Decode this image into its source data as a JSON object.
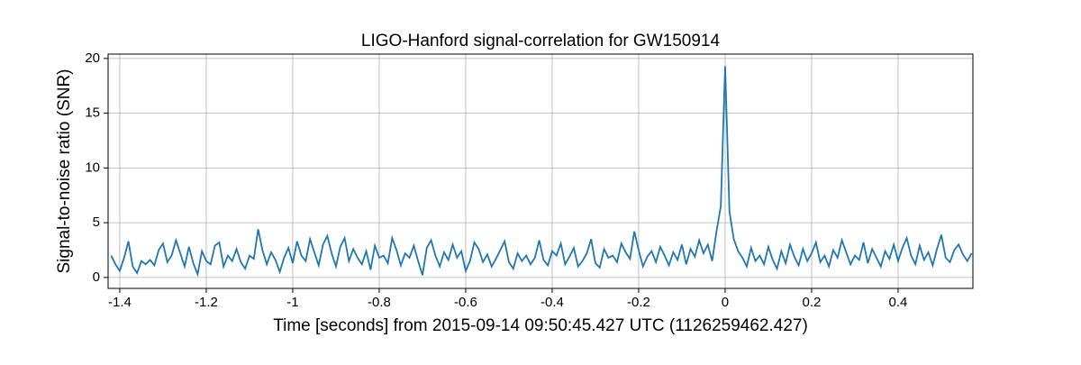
{
  "chart_data": {
    "type": "line",
    "title": "LIGO-Hanford signal-correlation for GW150914",
    "xlabel": "Time [seconds] from 2015-09-14 09:50:45.427 UTC (1126259462.427)",
    "ylabel": "Signal-to-noise ratio (SNR)",
    "xlim": [
      -1.427,
      0.573
    ],
    "ylim": [
      -1,
      20.4
    ],
    "xticks": [
      -1.4,
      -1.2,
      -1,
      -0.8,
      -0.6,
      -0.4,
      -0.2,
      0,
      0.2,
      0.4
    ],
    "yticks": [
      0,
      5,
      10,
      15,
      20
    ],
    "grid": true,
    "x": [
      -1.42,
      -1.41,
      -1.4,
      -1.39,
      -1.38,
      -1.37,
      -1.36,
      -1.35,
      -1.34,
      -1.33,
      -1.32,
      -1.31,
      -1.3,
      -1.29,
      -1.28,
      -1.27,
      -1.26,
      -1.25,
      -1.24,
      -1.23,
      -1.22,
      -1.21,
      -1.2,
      -1.19,
      -1.18,
      -1.17,
      -1.16,
      -1.15,
      -1.14,
      -1.13,
      -1.12,
      -1.11,
      -1.1,
      -1.09,
      -1.08,
      -1.07,
      -1.06,
      -1.05,
      -1.04,
      -1.03,
      -1.02,
      -1.01,
      -1,
      -0.99,
      -0.98,
      -0.97,
      -0.96,
      -0.95,
      -0.94,
      -0.93,
      -0.92,
      -0.91,
      -0.9,
      -0.89,
      -0.88,
      -0.87,
      -0.86,
      -0.85,
      -0.84,
      -0.83,
      -0.82,
      -0.81,
      -0.8,
      -0.79,
      -0.78,
      -0.77,
      -0.76,
      -0.75,
      -0.74,
      -0.73,
      -0.72,
      -0.71,
      -0.7,
      -0.69,
      -0.68,
      -0.67,
      -0.66,
      -0.65,
      -0.64,
      -0.63,
      -0.62,
      -0.61,
      -0.6,
      -0.59,
      -0.58,
      -0.57,
      -0.56,
      -0.55,
      -0.54,
      -0.53,
      -0.52,
      -0.51,
      -0.5,
      -0.49,
      -0.48,
      -0.47,
      -0.46,
      -0.45,
      -0.44,
      -0.43,
      -0.42,
      -0.41,
      -0.4,
      -0.39,
      -0.38,
      -0.37,
      -0.36,
      -0.35,
      -0.34,
      -0.33,
      -0.32,
      -0.31,
      -0.3,
      -0.29,
      -0.28,
      -0.27,
      -0.26,
      -0.25,
      -0.24,
      -0.23,
      -0.22,
      -0.21,
      -0.2,
      -0.19,
      -0.18,
      -0.17,
      -0.16,
      -0.15,
      -0.14,
      -0.13,
      -0.12,
      -0.11,
      -0.1,
      -0.09,
      -0.08,
      -0.07,
      -0.06,
      -0.05,
      -0.04,
      -0.03,
      -0.02,
      -0.01,
      0,
      0.01,
      0.02,
      0.03,
      0.04,
      0.05,
      0.06,
      0.07,
      0.08,
      0.09,
      0.1,
      0.11,
      0.12,
      0.13,
      0.14,
      0.15,
      0.16,
      0.17,
      0.18,
      0.19,
      0.2,
      0.21,
      0.22,
      0.23,
      0.24,
      0.25,
      0.26,
      0.27,
      0.28,
      0.29,
      0.3,
      0.31,
      0.32,
      0.33,
      0.34,
      0.35,
      0.36,
      0.37,
      0.38,
      0.39,
      0.4,
      0.41,
      0.42,
      0.43,
      0.44,
      0.45,
      0.46,
      0.47,
      0.48,
      0.49,
      0.5,
      0.51,
      0.52,
      0.53,
      0.54,
      0.55,
      0.56,
      0.57
    ],
    "series": [
      {
        "color": "#1f77b4",
        "values": [
          2.0,
          1.2,
          0.6,
          1.8,
          3.3,
          1.0,
          0.4,
          1.5,
          1.2,
          1.6,
          1.1,
          2.5,
          3.1,
          1.4,
          2.0,
          3.4,
          2.2,
          1.0,
          2.8,
          1.3,
          0.3,
          2.4,
          1.5,
          1.2,
          2.9,
          3.2,
          1.0,
          2.0,
          1.5,
          2.6,
          1.4,
          0.8,
          2.0,
          1.7,
          4.4,
          2.5,
          1.2,
          2.3,
          1.6,
          0.5,
          1.8,
          2.7,
          1.3,
          3.3,
          2.0,
          1.5,
          3.5,
          2.3,
          1.1,
          3.0,
          3.8,
          2.2,
          1.0,
          2.8,
          3.6,
          1.5,
          2.6,
          1.8,
          1.2,
          2.4,
          0.7,
          2.9,
          1.8,
          2.0,
          1.3,
          3.6,
          2.5,
          1.1,
          2.2,
          1.8,
          2.9,
          1.5,
          0.2,
          2.7,
          3.4,
          2.0,
          1.0,
          2.3,
          1.6,
          3.0,
          1.8,
          2.4,
          0.6,
          1.5,
          3.2,
          2.6,
          1.4,
          2.1,
          1.0,
          1.7,
          2.5,
          3.3,
          1.4,
          0.8,
          2.2,
          1.5,
          2.0,
          1.2,
          1.8,
          3.4,
          1.6,
          1.1,
          2.4,
          2.0,
          3.1,
          1.2,
          1.9,
          2.7,
          1.0,
          1.5,
          2.2,
          3.5,
          1.3,
          0.9,
          2.6,
          1.8,
          2.0,
          1.4,
          3.1,
          2.3,
          1.7,
          4.2,
          2.5,
          1.0,
          1.9,
          2.4,
          1.4,
          2.8,
          2.0,
          1.1,
          2.3,
          1.6,
          3.0,
          1.2,
          2.6,
          1.9,
          3.4,
          2.2,
          3.0,
          1.5,
          4.2,
          6.5,
          19.3,
          6.0,
          3.5,
          2.4,
          1.8,
          1.0,
          2.7,
          1.5,
          2.0,
          1.2,
          2.8,
          1.6,
          0.8,
          2.4,
          1.3,
          3.0,
          1.9,
          1.1,
          2.6,
          1.5,
          2.2,
          3.2,
          1.4,
          2.0,
          1.0,
          2.5,
          1.8,
          3.4,
          2.3,
          1.2,
          2.0,
          1.6,
          3.2,
          1.3,
          2.6,
          1.8,
          1.0,
          2.4,
          1.7,
          3.0,
          1.5,
          2.7,
          3.6,
          2.0,
          1.2,
          2.9,
          1.6,
          2.3,
          1.1,
          2.6,
          3.9,
          1.8,
          1.4,
          2.5,
          3.0,
          2.1,
          1.5,
          2.2
        ]
      }
    ]
  }
}
